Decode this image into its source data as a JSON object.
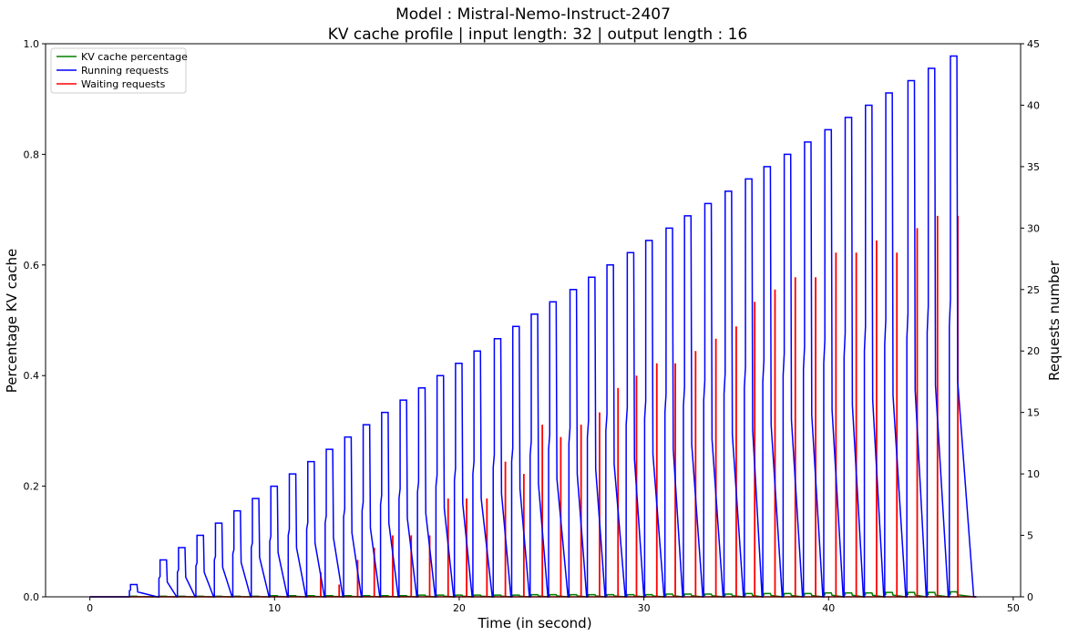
{
  "chart_data": {
    "type": "line",
    "title": "Model : Mistral-Nemo-Instruct-2407",
    "subtitle": "KV cache profile | input length: 32 | output length : 16",
    "xlabel": "Time (in second)",
    "ylabel_left": "Percentage KV cache",
    "ylabel_right": "Requests number",
    "xlim": [
      -2.4,
      50.4
    ],
    "ylim_left": [
      0,
      1.0
    ],
    "ylim_right": [
      0,
      45
    ],
    "x_ticks": [
      0,
      10,
      20,
      30,
      40,
      50
    ],
    "y_ticks_left": [
      0.0,
      0.2,
      0.4,
      0.6,
      0.8,
      1.0
    ],
    "y_ticks_right": [
      0,
      5,
      10,
      15,
      20,
      25,
      30,
      35,
      40,
      45
    ],
    "grid": false,
    "legend_position": "top-left",
    "series": [
      {
        "name": "KV cache percentage",
        "axis": "left",
        "color": "#008000",
        "style": "step",
        "start_x": 0,
        "end_x": 48,
        "burst_times": [
          0.0,
          2.2,
          3.8,
          4.8,
          5.8,
          6.8,
          7.8,
          8.8,
          9.8,
          10.8,
          11.8,
          12.8,
          13.8,
          14.8,
          15.8,
          16.8,
          17.8,
          18.8,
          19.8,
          20.8,
          21.9,
          22.9,
          23.9,
          24.9,
          26.0,
          27.0,
          28.0,
          29.1,
          30.1,
          31.2,
          32.2,
          33.3,
          34.4,
          35.5,
          36.5,
          37.6,
          38.7,
          39.8,
          40.9,
          42.0,
          43.1,
          44.3,
          45.4,
          46.6
        ],
        "peak_values": [
          0.0,
          0.001,
          0.001,
          0.001,
          0.001,
          0.001,
          0.001,
          0.001,
          0.002,
          0.002,
          0.002,
          0.002,
          0.002,
          0.002,
          0.002,
          0.002,
          0.003,
          0.003,
          0.003,
          0.003,
          0.003,
          0.003,
          0.004,
          0.004,
          0.004,
          0.004,
          0.004,
          0.004,
          0.004,
          0.005,
          0.005,
          0.005,
          0.005,
          0.006,
          0.006,
          0.006,
          0.006,
          0.007,
          0.007,
          0.007,
          0.008,
          0.008,
          0.008,
          0.009
        ]
      },
      {
        "name": "Running requests",
        "axis": "right",
        "color": "#0000ff",
        "style": "step",
        "start_x": 0,
        "end_x": 48,
        "burst_times": [
          0.0,
          2.2,
          3.8,
          4.8,
          5.8,
          6.8,
          7.8,
          8.8,
          9.8,
          10.8,
          11.8,
          12.8,
          13.8,
          14.8,
          15.8,
          16.8,
          17.8,
          18.8,
          19.8,
          20.8,
          21.9,
          22.9,
          23.9,
          24.9,
          26.0,
          27.0,
          28.0,
          29.1,
          30.1,
          31.2,
          32.2,
          33.3,
          34.4,
          35.5,
          36.5,
          37.6,
          38.7,
          39.8,
          40.9,
          42.0,
          43.1,
          44.3,
          45.4,
          46.6
        ],
        "peak_values": [
          0,
          1,
          3,
          4,
          5,
          6,
          7,
          8,
          9,
          10,
          11,
          12,
          13,
          14,
          15,
          16,
          17,
          18,
          19,
          20,
          21,
          22,
          23,
          24,
          25,
          26,
          27,
          28,
          29,
          30,
          31,
          32,
          33,
          34,
          35,
          36,
          37,
          38,
          39,
          40,
          41,
          42,
          43,
          44
        ]
      },
      {
        "name": "Waiting requests",
        "axis": "right",
        "color": "#ff0000",
        "style": "spike",
        "start_x": 0,
        "end_x": 48,
        "spike_times": [
          12.5,
          13.5,
          14.5,
          15.4,
          16.4,
          17.4,
          18.4,
          19.4,
          20.4,
          21.5,
          22.5,
          23.5,
          24.5,
          25.5,
          26.6,
          27.6,
          28.6,
          29.6,
          30.7,
          31.7,
          32.8,
          33.9,
          35.0,
          36.0,
          37.1,
          38.2,
          39.3,
          40.4,
          41.5,
          42.6,
          43.7,
          44.8,
          45.9,
          47.0
        ],
        "spike_values": [
          2,
          1,
          3,
          4,
          5,
          5,
          5,
          8,
          8,
          8,
          11,
          10,
          14,
          13,
          14,
          15,
          17,
          18,
          19,
          19,
          20,
          21,
          22,
          24,
          25,
          26,
          26,
          28,
          28,
          29,
          28,
          30,
          31,
          31
        ]
      }
    ]
  }
}
